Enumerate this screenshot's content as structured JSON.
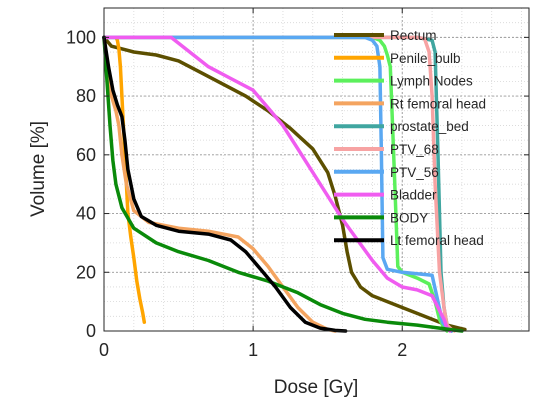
{
  "chart_data": {
    "type": "line",
    "xlabel": "Dose [Gy]",
    "ylabel": "Volume [%]",
    "xlim": [
      0,
      2.85
    ],
    "ylim": [
      0,
      110
    ],
    "xticks": [
      0,
      1,
      2
    ],
    "xtick_labels": [
      "0",
      "1",
      "2"
    ],
    "yticks": [
      0,
      20,
      40,
      60,
      80,
      100
    ],
    "ytick_labels": [
      "0",
      "20",
      "40",
      "60",
      "80",
      "100"
    ],
    "grid": "major and minor, dotted",
    "legend_position": "top-right, inside",
    "series": [
      {
        "name": "Rectum",
        "color": "#5c4f00",
        "points": [
          [
            0,
            100
          ],
          [
            0.05,
            97
          ],
          [
            0.2,
            95
          ],
          [
            0.35,
            94
          ],
          [
            0.5,
            92
          ],
          [
            0.65,
            88
          ],
          [
            0.8,
            84
          ],
          [
            0.95,
            80
          ],
          [
            1.1,
            75
          ],
          [
            1.25,
            69
          ],
          [
            1.4,
            62
          ],
          [
            1.5,
            54
          ],
          [
            1.55,
            46
          ],
          [
            1.6,
            36
          ],
          [
            1.63,
            27
          ],
          [
            1.66,
            20
          ],
          [
            1.72,
            15
          ],
          [
            1.8,
            12
          ],
          [
            1.9,
            10
          ],
          [
            2.0,
            8
          ],
          [
            2.1,
            6
          ],
          [
            2.2,
            4
          ],
          [
            2.3,
            2
          ],
          [
            2.38,
            1
          ],
          [
            2.42,
            0.5
          ]
        ]
      },
      {
        "name": "Penile_bulb",
        "color": "#ffa500",
        "points": [
          [
            0.08,
            100
          ],
          [
            0.09,
            99
          ],
          [
            0.1,
            96
          ],
          [
            0.11,
            90
          ],
          [
            0.12,
            80
          ],
          [
            0.13,
            70
          ],
          [
            0.14,
            60
          ],
          [
            0.15,
            50
          ],
          [
            0.16,
            40
          ],
          [
            0.18,
            32
          ],
          [
            0.2,
            25
          ],
          [
            0.22,
            17
          ],
          [
            0.24,
            11
          ],
          [
            0.26,
            6
          ],
          [
            0.27,
            3
          ]
        ]
      },
      {
        "name": "Lymph Nodes",
        "color": "#5cf05c",
        "points": [
          [
            0,
            100
          ],
          [
            1.8,
            100
          ],
          [
            1.85,
            99
          ],
          [
            1.88,
            97
          ],
          [
            1.9,
            94
          ],
          [
            1.92,
            90
          ],
          [
            1.95,
            50
          ],
          [
            1.97,
            22
          ],
          [
            2.0,
            20
          ],
          [
            2.1,
            18
          ],
          [
            2.18,
            16
          ],
          [
            2.22,
            10
          ],
          [
            2.25,
            4
          ],
          [
            2.28,
            1
          ],
          [
            2.3,
            0
          ]
        ]
      },
      {
        "name": "Rt femoral head",
        "color": "#f4a460",
        "points": [
          [
            0,
            100
          ],
          [
            0.02,
            90
          ],
          [
            0.05,
            80
          ],
          [
            0.08,
            75
          ],
          [
            0.1,
            70
          ],
          [
            0.12,
            60
          ],
          [
            0.15,
            50
          ],
          [
            0.2,
            41
          ],
          [
            0.3,
            37
          ],
          [
            0.5,
            35
          ],
          [
            0.7,
            34
          ],
          [
            0.9,
            32
          ],
          [
            1.0,
            28
          ],
          [
            1.1,
            22
          ],
          [
            1.2,
            15
          ],
          [
            1.3,
            8
          ],
          [
            1.4,
            3
          ],
          [
            1.5,
            0.5
          ],
          [
            1.55,
            0
          ]
        ]
      },
      {
        "name": "prostate_bed",
        "color": "#40a6a0",
        "points": [
          [
            0,
            100
          ],
          [
            1.85,
            100
          ],
          [
            2.0,
            100
          ],
          [
            2.1,
            100
          ],
          [
            2.2,
            99
          ],
          [
            2.22,
            95
          ],
          [
            2.24,
            60
          ],
          [
            2.26,
            20
          ],
          [
            2.28,
            8
          ],
          [
            2.3,
            2
          ],
          [
            2.33,
            0
          ]
        ]
      },
      {
        "name": "PTV_68",
        "color": "#f7a3a3",
        "points": [
          [
            0,
            100
          ],
          [
            2.1,
            100
          ],
          [
            2.15,
            99.5
          ],
          [
            2.18,
            95
          ],
          [
            2.2,
            80
          ],
          [
            2.22,
            50
          ],
          [
            2.25,
            20
          ],
          [
            2.28,
            8
          ],
          [
            2.3,
            2
          ],
          [
            2.33,
            0.5
          ],
          [
            2.35,
            0
          ]
        ]
      },
      {
        "name": "PTV_56",
        "color": "#5aa8f2",
        "points": [
          [
            0,
            100
          ],
          [
            1.75,
            100
          ],
          [
            1.8,
            99
          ],
          [
            1.83,
            97
          ],
          [
            1.85,
            90
          ],
          [
            1.86,
            60
          ],
          [
            1.87,
            25
          ],
          [
            1.9,
            21
          ],
          [
            2.0,
            20
          ],
          [
            2.2,
            19
          ],
          [
            2.24,
            10
          ],
          [
            2.27,
            3
          ],
          [
            2.3,
            1
          ],
          [
            2.33,
            0
          ]
        ]
      },
      {
        "name": "Bladder",
        "color": "#f05cf0",
        "points": [
          [
            0,
            100
          ],
          [
            0.45,
            100
          ],
          [
            0.5,
            98
          ],
          [
            0.6,
            94
          ],
          [
            0.7,
            90
          ],
          [
            0.85,
            86
          ],
          [
            1.0,
            82
          ],
          [
            1.1,
            76
          ],
          [
            1.2,
            70
          ],
          [
            1.3,
            62
          ],
          [
            1.4,
            54
          ],
          [
            1.5,
            46
          ],
          [
            1.6,
            38
          ],
          [
            1.7,
            31
          ],
          [
            1.8,
            24
          ],
          [
            1.9,
            18
          ],
          [
            2.0,
            15
          ],
          [
            2.1,
            14
          ],
          [
            2.2,
            12
          ],
          [
            2.24,
            8
          ],
          [
            2.28,
            4
          ],
          [
            2.3,
            1
          ],
          [
            2.32,
            0
          ]
        ]
      },
      {
        "name": "BODY",
        "color": "#0a8a0a",
        "points": [
          [
            0,
            100
          ],
          [
            0.02,
            85
          ],
          [
            0.04,
            70
          ],
          [
            0.06,
            58
          ],
          [
            0.08,
            50
          ],
          [
            0.12,
            42
          ],
          [
            0.2,
            35
          ],
          [
            0.35,
            30
          ],
          [
            0.5,
            27
          ],
          [
            0.7,
            24
          ],
          [
            0.9,
            20
          ],
          [
            1.1,
            17
          ],
          [
            1.3,
            13
          ],
          [
            1.45,
            9
          ],
          [
            1.6,
            6
          ],
          [
            1.75,
            4
          ],
          [
            1.9,
            3
          ],
          [
            2.1,
            2
          ],
          [
            2.25,
            1
          ],
          [
            2.35,
            0.3
          ],
          [
            2.4,
            0
          ]
        ]
      },
      {
        "name": "Lt femoral head",
        "color": "#000000",
        "points": [
          [
            0,
            100
          ],
          [
            0.03,
            90
          ],
          [
            0.06,
            82
          ],
          [
            0.09,
            77
          ],
          [
            0.12,
            73
          ],
          [
            0.14,
            65
          ],
          [
            0.16,
            55
          ],
          [
            0.2,
            45
          ],
          [
            0.25,
            39
          ],
          [
            0.35,
            36
          ],
          [
            0.5,
            34
          ],
          [
            0.7,
            33
          ],
          [
            0.85,
            31
          ],
          [
            0.95,
            27
          ],
          [
            1.05,
            21
          ],
          [
            1.15,
            15
          ],
          [
            1.25,
            8
          ],
          [
            1.35,
            3
          ],
          [
            1.45,
            1
          ],
          [
            1.55,
            0.2
          ],
          [
            1.62,
            0
          ]
        ]
      }
    ]
  }
}
